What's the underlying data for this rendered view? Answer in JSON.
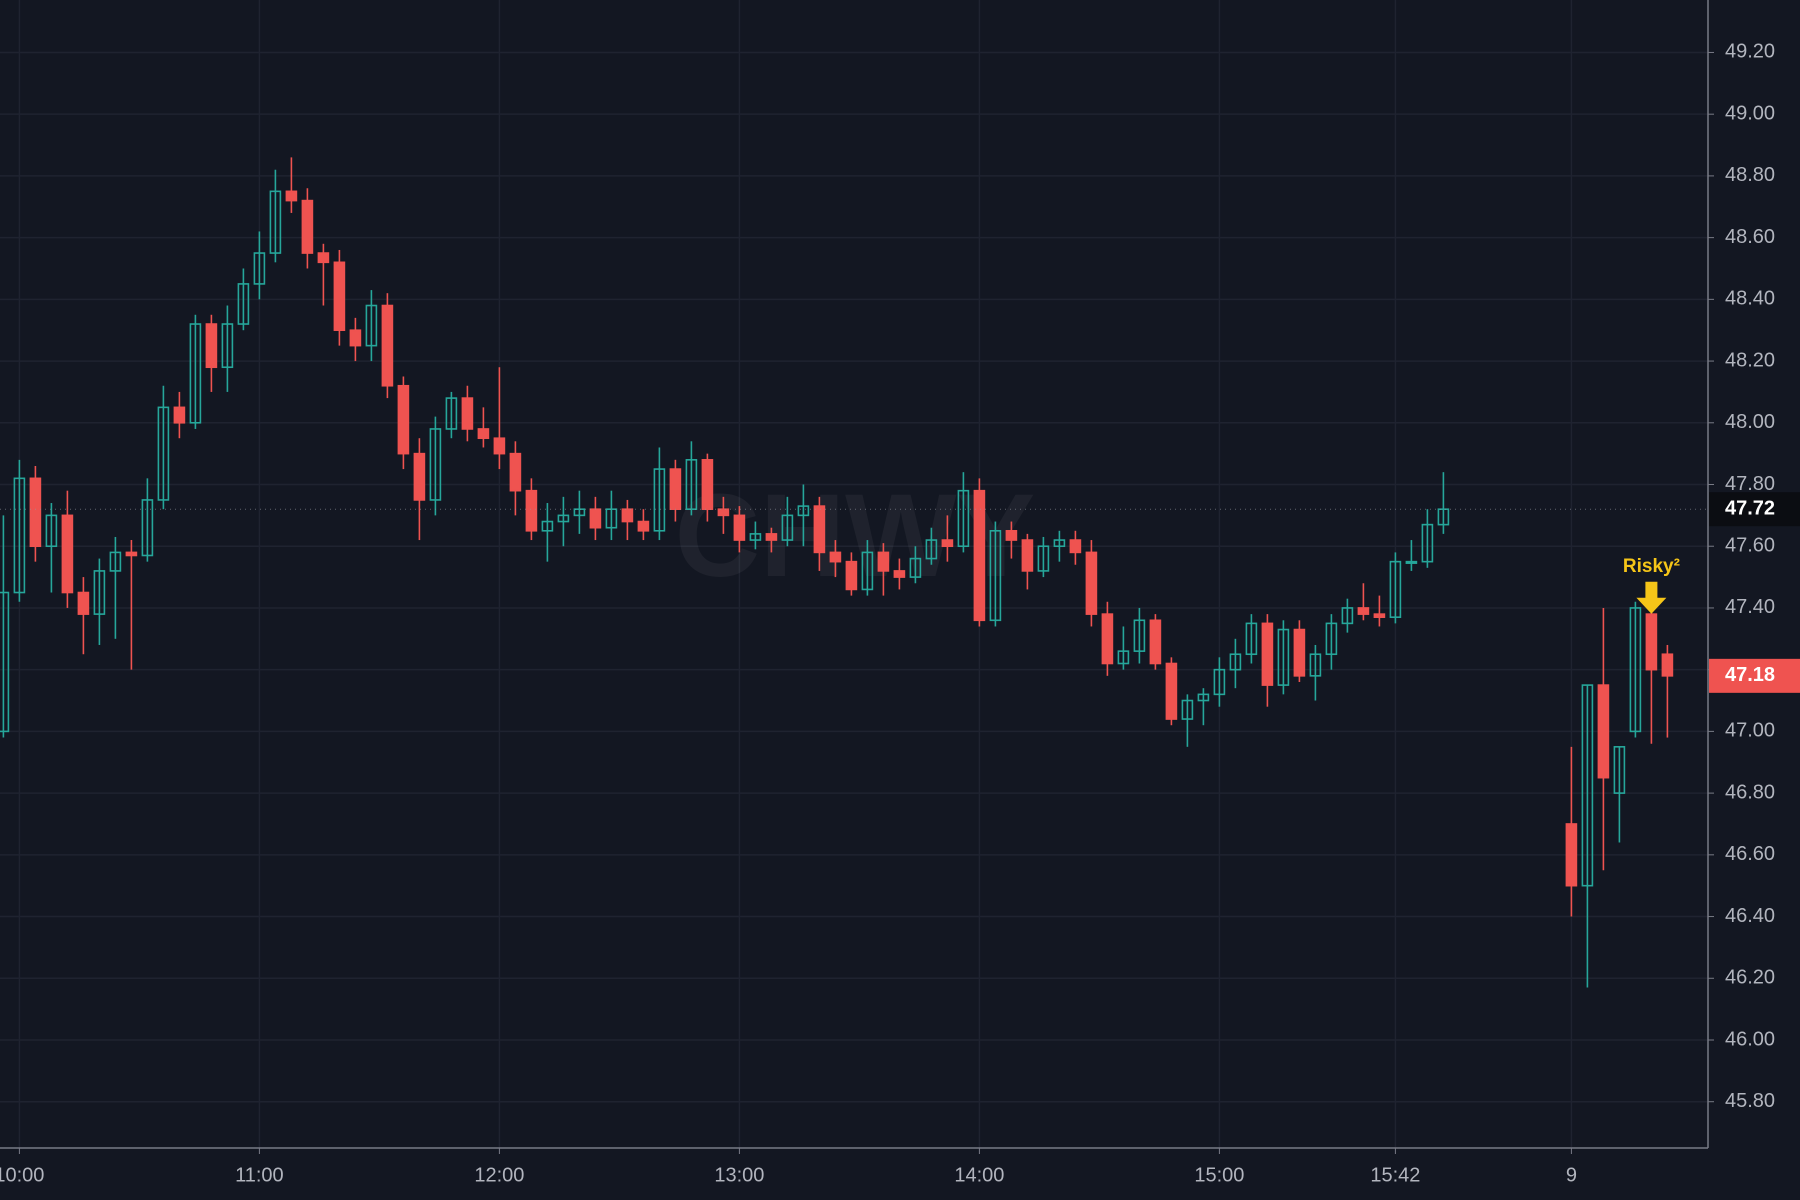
{
  "chart_data": {
    "type": "candlestick",
    "watermark": "CHWY",
    "up_color": "#26a69a",
    "down_color": "#ef5350",
    "grid": true,
    "ylim": [
      45.65,
      49.37
    ],
    "yticks": [
      {
        "value": 45.8,
        "label": "45.80"
      },
      {
        "value": 46.0,
        "label": "46.00"
      },
      {
        "value": 46.2,
        "label": "46.20"
      },
      {
        "value": 46.4,
        "label": "46.40"
      },
      {
        "value": 46.6,
        "label": "46.60"
      },
      {
        "value": 46.8,
        "label": "46.80"
      },
      {
        "value": 47.0,
        "label": "47.00"
      },
      {
        "value": 47.2,
        "label": "47.20"
      },
      {
        "value": 47.4,
        "label": "47.40"
      },
      {
        "value": 47.6,
        "label": "47.60"
      },
      {
        "value": 47.8,
        "label": "47.80"
      },
      {
        "value": 48.0,
        "label": "48.00"
      },
      {
        "value": 48.2,
        "label": "48.20"
      },
      {
        "value": 48.4,
        "label": "48.40"
      },
      {
        "value": 48.6,
        "label": "48.60"
      },
      {
        "value": 48.8,
        "label": "48.80"
      },
      {
        "value": 49.0,
        "label": "49.00"
      },
      {
        "value": 49.2,
        "label": "49.20"
      }
    ],
    "last_price": 47.72,
    "current_price": 47.18,
    "annotation": {
      "text": "Risky²",
      "color": "#f5c518"
    },
    "categories": [
      null,
      "10:00",
      null,
      null,
      null,
      null,
      null,
      null,
      null,
      null,
      null,
      null,
      null,
      null,
      null,
      null,
      "11:00",
      null,
      null,
      null,
      null,
      null,
      null,
      null,
      null,
      null,
      null,
      null,
      null,
      null,
      null,
      "12:00",
      null,
      null,
      null,
      null,
      null,
      null,
      null,
      null,
      null,
      null,
      null,
      null,
      null,
      null,
      "13:00",
      null,
      null,
      null,
      null,
      null,
      null,
      null,
      null,
      null,
      null,
      null,
      null,
      null,
      null,
      "14:00",
      null,
      null,
      null,
      null,
      null,
      null,
      null,
      null,
      null,
      null,
      null,
      null,
      null,
      null,
      "15:00",
      null,
      null,
      null,
      null,
      null,
      null,
      null,
      null,
      null,
      null,
      "15:42",
      null,
      null,
      null,
      null,
      null,
      null,
      null,
      null,
      null,
      null,
      "9",
      null,
      null,
      null,
      null,
      null,
      null
    ],
    "open": [
      47.0,
      47.45,
      47.82,
      47.6,
      47.7,
      47.45,
      47.38,
      47.52,
      47.58,
      47.57,
      47.75,
      48.05,
      48.0,
      48.32,
      48.18,
      48.32,
      48.45,
      48.55,
      48.75,
      48.72,
      48.55,
      48.52,
      48.3,
      48.25,
      48.38,
      48.12,
      47.9,
      47.75,
      47.98,
      48.08,
      47.98,
      47.95,
      47.9,
      47.78,
      47.65,
      47.68,
      47.7,
      47.72,
      47.66,
      47.72,
      47.68,
      47.65,
      47.85,
      47.72,
      47.88,
      47.72,
      47.7,
      47.62,
      47.64,
      47.62,
      47.7,
      47.73,
      47.58,
      47.55,
      47.46,
      47.58,
      47.52,
      47.5,
      47.56,
      47.62,
      47.6,
      47.78,
      47.36,
      47.65,
      47.62,
      47.52,
      47.6,
      47.62,
      47.58,
      47.38,
      47.22,
      47.26,
      47.36,
      47.22,
      47.04,
      47.1,
      47.12,
      47.2,
      47.25,
      47.35,
      47.15,
      47.33,
      47.18,
      47.25,
      47.35,
      47.4,
      47.38,
      47.37,
      47.55,
      47.55,
      47.67,
      null,
      null,
      null,
      null,
      null,
      null,
      null,
      46.7,
      46.5,
      47.15,
      46.8,
      47.0,
      47.38,
      47.25
    ],
    "high": [
      47.7,
      47.88,
      47.86,
      47.74,
      47.78,
      47.5,
      47.56,
      47.63,
      47.62,
      47.82,
      48.12,
      48.1,
      48.35,
      48.35,
      48.38,
      48.5,
      48.62,
      48.82,
      48.86,
      48.76,
      48.58,
      48.56,
      48.34,
      48.43,
      48.42,
      48.15,
      47.95,
      48.02,
      48.1,
      48.12,
      48.05,
      48.18,
      47.94,
      47.82,
      47.74,
      47.76,
      47.78,
      47.76,
      47.78,
      47.75,
      47.72,
      47.92,
      47.88,
      47.94,
      47.9,
      47.76,
      47.73,
      47.68,
      47.66,
      47.76,
      47.8,
      47.76,
      47.62,
      47.58,
      47.62,
      47.61,
      47.56,
      47.6,
      47.66,
      47.7,
      47.84,
      47.82,
      47.68,
      47.68,
      47.64,
      47.63,
      47.65,
      47.65,
      47.62,
      47.42,
      47.34,
      47.4,
      47.38,
      47.24,
      47.12,
      47.14,
      47.24,
      47.3,
      47.38,
      47.38,
      47.36,
      47.36,
      47.28,
      47.38,
      47.43,
      47.48,
      47.44,
      47.58,
      47.62,
      47.72,
      47.84,
      null,
      null,
      null,
      null,
      null,
      null,
      null,
      46.95,
      47.15,
      47.4,
      46.95,
      47.42,
      47.42,
      47.28
    ],
    "low": [
      46.98,
      47.42,
      47.55,
      47.45,
      47.4,
      47.25,
      47.28,
      47.3,
      47.2,
      47.55,
      47.72,
      47.95,
      47.98,
      48.1,
      48.1,
      48.3,
      48.4,
      48.52,
      48.68,
      48.5,
      48.38,
      48.25,
      48.2,
      48.2,
      48.08,
      47.85,
      47.62,
      47.7,
      47.95,
      47.94,
      47.92,
      47.85,
      47.7,
      47.62,
      47.55,
      47.6,
      47.64,
      47.62,
      47.62,
      47.62,
      47.62,
      47.62,
      47.68,
      47.7,
      47.68,
      47.64,
      47.58,
      47.59,
      47.58,
      47.6,
      47.6,
      47.52,
      47.5,
      47.44,
      47.44,
      47.44,
      47.46,
      47.48,
      47.54,
      47.55,
      47.58,
      47.34,
      47.34,
      47.56,
      47.46,
      47.5,
      47.55,
      47.54,
      47.34,
      47.18,
      47.2,
      47.22,
      47.2,
      47.02,
      46.95,
      47.02,
      47.08,
      47.14,
      47.22,
      47.08,
      47.12,
      47.16,
      47.1,
      47.2,
      47.32,
      47.36,
      47.34,
      47.35,
      47.52,
      47.53,
      47.64,
      null,
      null,
      null,
      null,
      null,
      null,
      null,
      46.4,
      46.17,
      46.55,
      46.64,
      46.98,
      46.96,
      46.98
    ],
    "close": [
      47.45,
      47.82,
      47.6,
      47.7,
      47.45,
      47.38,
      47.52,
      47.58,
      47.57,
      47.75,
      48.05,
      48.0,
      48.32,
      48.18,
      48.32,
      48.45,
      48.55,
      48.75,
      48.72,
      48.55,
      48.52,
      48.3,
      48.25,
      48.38,
      48.12,
      47.9,
      47.75,
      47.98,
      48.08,
      47.98,
      47.95,
      47.9,
      47.78,
      47.65,
      47.68,
      47.7,
      47.72,
      47.66,
      47.72,
      47.68,
      47.65,
      47.85,
      47.72,
      47.88,
      47.72,
      47.7,
      47.62,
      47.64,
      47.62,
      47.7,
      47.73,
      47.58,
      47.55,
      47.46,
      47.58,
      47.52,
      47.5,
      47.56,
      47.62,
      47.6,
      47.78,
      47.36,
      47.65,
      47.62,
      47.52,
      47.6,
      47.62,
      47.58,
      47.38,
      47.22,
      47.26,
      47.36,
      47.22,
      47.04,
      47.1,
      47.12,
      47.2,
      47.25,
      47.35,
      47.15,
      47.33,
      47.18,
      47.25,
      47.35,
      47.4,
      47.38,
      47.37,
      47.55,
      47.55,
      47.67,
      47.72,
      null,
      null,
      null,
      null,
      null,
      null,
      null,
      46.5,
      47.15,
      46.85,
      46.95,
      47.4,
      47.2,
      47.18
    ]
  }
}
